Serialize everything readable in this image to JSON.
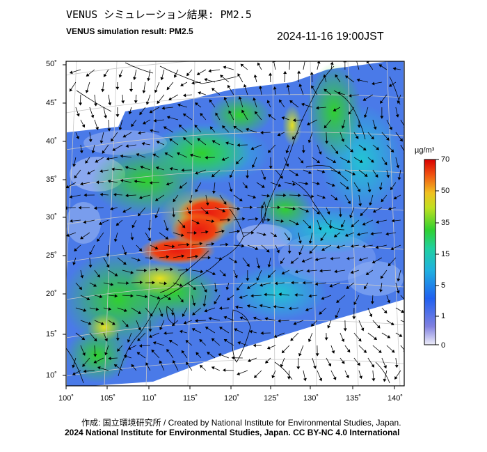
{
  "header": {
    "title_jp": "VENUS シミュレーション結果: PM2.5",
    "title_en": "VENUS simulation result: PM2.5",
    "timestamp": "2024-11-16 19:00JST"
  },
  "footer": {
    "credit": "作成: 国立環境研究所 / Created by National Institute for Environmental Studies, Japan.",
    "copyright": "2024 National Institute for Environmental Studies, Japan. CC BY-NC 4.0 International"
  },
  "map": {
    "lat_labels": [
      "50˚",
      "45˚",
      "40˚",
      "35˚",
      "30˚",
      "25˚",
      "20˚",
      "15˚",
      "10˚"
    ],
    "lon_labels": [
      "100˚",
      "105˚",
      "110˚",
      "115˚",
      "120˚",
      "125˚",
      "130˚",
      "135˚",
      "140˚"
    ],
    "colors": {
      "background_sea": "#3d6fe0",
      "low": "#5a8af0",
      "mid": "#22c4d4",
      "green": "#3ad23a",
      "yellow": "#e8e020",
      "red": "#e81c10"
    }
  },
  "colorbar": {
    "unit": "µg/m³",
    "tick_labels": [
      "70",
      "50",
      "35",
      "15",
      "5",
      "1",
      "0"
    ],
    "colors": [
      "#dcdcf4",
      "#5c5cdc",
      "#1e78f0",
      "#22c8c8",
      "#30d030",
      "#b8e020",
      "#f0c020",
      "#f06010",
      "#d80000"
    ]
  }
}
